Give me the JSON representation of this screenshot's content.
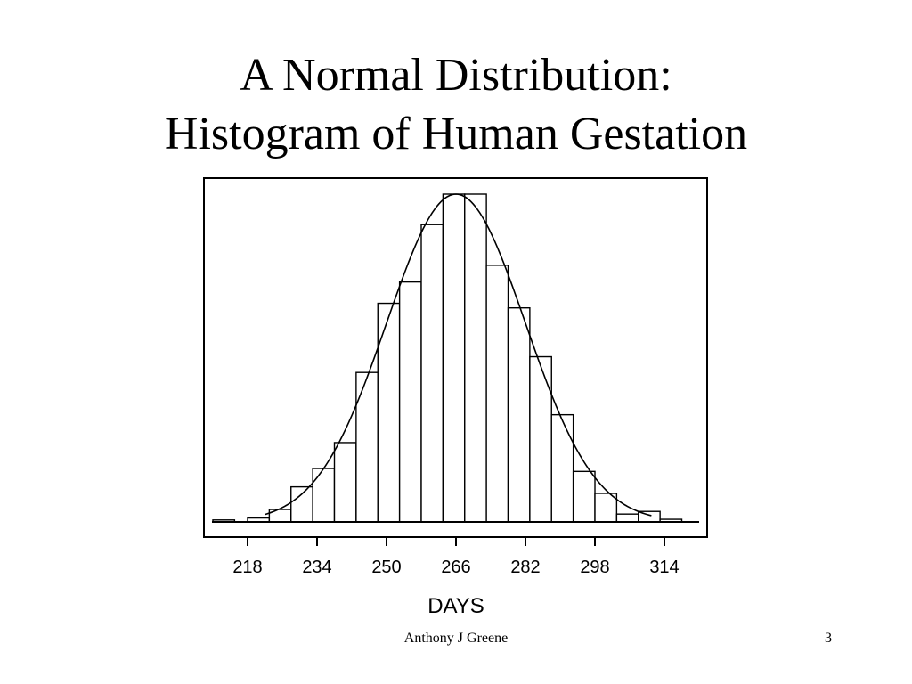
{
  "slide": {
    "title_line1": "A Normal Distribution:",
    "title_line2": "Histogram of Human Gestation",
    "footer_author": "Anthony J Greene",
    "page_number": "3"
  },
  "chart_data": {
    "type": "bar",
    "title": "",
    "xlabel": "DAYS",
    "ylabel": "",
    "bin_width": 5,
    "bin_starts": [
      210,
      218,
      223,
      228,
      233,
      238,
      243,
      248,
      253,
      258,
      263,
      268,
      273,
      278,
      283,
      288,
      293,
      298,
      303,
      308,
      313
    ],
    "values": [
      0.6,
      1.2,
      3.8,
      10.7,
      16.3,
      24.2,
      45.6,
      66.7,
      73.2,
      90.7,
      100,
      100,
      78.3,
      65.3,
      50.4,
      32.7,
      15.4,
      8.7,
      2.4,
      3.2,
      0.8
    ],
    "ylim": [
      0,
      100
    ],
    "xlim": [
      208,
      320
    ],
    "xticks": [
      218,
      234,
      250,
      266,
      282,
      298,
      314
    ],
    "curve": {
      "type": "normal",
      "mean": 266,
      "sd": 16,
      "peak": 100
    },
    "grid": false,
    "legend": "none"
  }
}
